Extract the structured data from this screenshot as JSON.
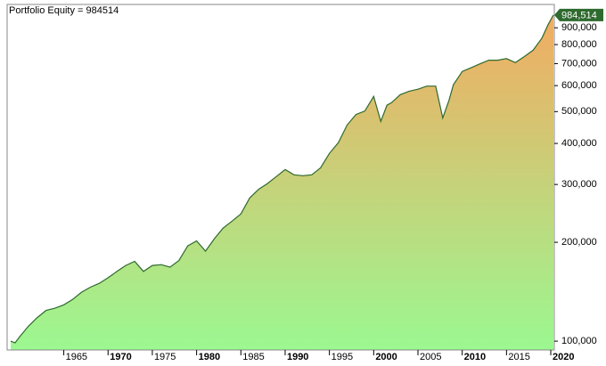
{
  "chart_data": {
    "type": "area",
    "title": "Portfolio Equity = 984514",
    "x": [
      1959.0,
      1959.5,
      1960,
      1961,
      1962,
      1963,
      1964,
      1965,
      1966,
      1967,
      1968,
      1969,
      1970,
      1971,
      1972,
      1973,
      1974,
      1975,
      1976,
      1977,
      1978,
      1979,
      1980,
      1981,
      1982,
      1983,
      1984,
      1985,
      1986,
      1987,
      1988,
      1989,
      1990,
      1991,
      1992,
      1993,
      1994,
      1995,
      1996,
      1997,
      1998,
      1999,
      2000,
      2000.8,
      2001.5,
      2002,
      2003,
      2004,
      2005,
      2006,
      2007,
      2007.8,
      2008.5,
      2009,
      2010,
      2011,
      2012,
      2013,
      2014,
      2015,
      2016,
      2017,
      2018,
      2019,
      2019.7,
      2020.3
    ],
    "values": [
      100000,
      98800,
      103000,
      111000,
      118000,
      124000,
      126000,
      129000,
      134000,
      141000,
      146000,
      150000,
      156000,
      163000,
      170000,
      175000,
      163000,
      170000,
      171000,
      168000,
      176000,
      195000,
      202000,
      188000,
      205000,
      221000,
      232000,
      244000,
      273000,
      290000,
      302000,
      317000,
      333000,
      321000,
      319000,
      321000,
      337000,
      373000,
      402000,
      455000,
      490000,
      502000,
      556000,
      467000,
      523000,
      532000,
      563000,
      577000,
      585000,
      598000,
      598000,
      478000,
      541000,
      603000,
      663000,
      680000,
      699000,
      717000,
      717000,
      725000,
      705000,
      735000,
      769000,
      837000,
      920000,
      984514
    ],
    "value_label": "984,514",
    "xlim": [
      1958.6,
      2020.4
    ],
    "xticks": [
      1965,
      1970,
      1975,
      1980,
      1985,
      1990,
      1995,
      2000,
      2005,
      2010,
      2015,
      2020
    ],
    "ylim": [
      94000,
      1060000
    ],
    "yticks": [
      {
        "value": 100000,
        "label": "100,000"
      },
      {
        "value": 200000,
        "label": "200,000"
      },
      {
        "value": 300000,
        "label": "300,000"
      },
      {
        "value": 400000,
        "label": "400,000"
      },
      {
        "value": 500000,
        "label": "500,000"
      },
      {
        "value": 600000,
        "label": "600,000"
      },
      {
        "value": 700000,
        "label": "700,000"
      },
      {
        "value": 800000,
        "label": "800,000"
      },
      {
        "value": 900000,
        "label": "900,000"
      }
    ],
    "log_scale": true,
    "line_color": "#2f6a2f",
    "fill_gradient": [
      "#f2ab62",
      "#9bf891"
    ]
  }
}
